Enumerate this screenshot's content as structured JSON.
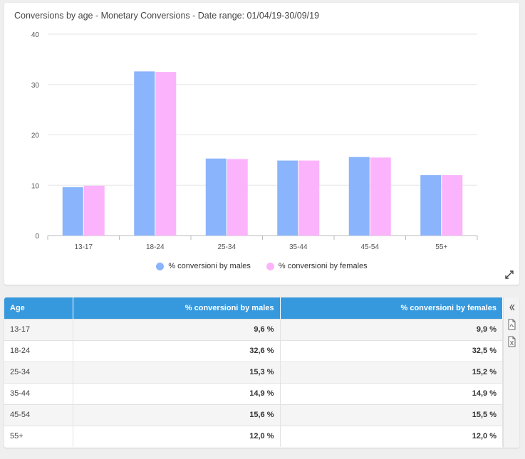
{
  "chart_data": {
    "type": "bar",
    "title": "Conversions by age - Monetary Conversions - Date range: 01/04/19-30/09/19",
    "categories": [
      "13-17",
      "18-24",
      "25-34",
      "35-44",
      "45-54",
      "55+"
    ],
    "series": [
      {
        "name": "% conversioni by males",
        "color": "#8ab4fb",
        "values": [
          9.6,
          32.6,
          15.3,
          14.9,
          15.6,
          12.0
        ]
      },
      {
        "name": "% conversioni by females",
        "color": "#fbb4fb",
        "values": [
          9.9,
          32.5,
          15.2,
          14.9,
          15.5,
          12.0
        ]
      }
    ],
    "ylim": [
      0,
      40
    ],
    "yticks": [
      "0",
      "10",
      "20",
      "30",
      "40"
    ],
    "grid": true,
    "legend": "bottom-center"
  },
  "table": {
    "headers": [
      "Age",
      "% conversioni by males",
      "% conversioni by females"
    ],
    "rows": [
      [
        "13-17",
        "9,6 %",
        "9,9 %"
      ],
      [
        "18-24",
        "32,6 %",
        "32,5 %"
      ],
      [
        "25-34",
        "15,3 %",
        "15,2 %"
      ],
      [
        "35-44",
        "14,9 %",
        "14,9 %"
      ],
      [
        "45-54",
        "15,6 %",
        "15,5 %"
      ],
      [
        "55+",
        "12,0 %",
        "12,0 %"
      ]
    ],
    "header_color": "#3699dd"
  },
  "icons": {
    "expand": "expand-icon",
    "collapse": "chevrons-left-icon",
    "pdf": "pdf-export-icon",
    "excel": "excel-export-icon"
  }
}
